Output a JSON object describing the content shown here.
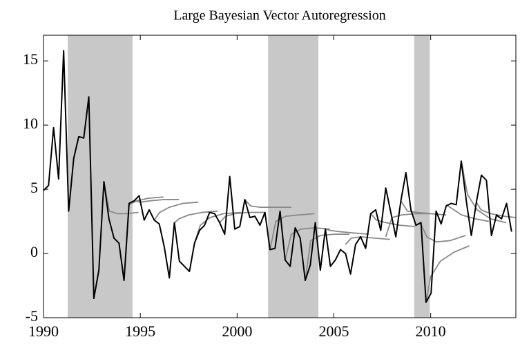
{
  "chart_data": {
    "type": "line",
    "title": "Large Bayesian Vector Autoregression",
    "xlim": [
      1990,
      2014.4
    ],
    "xticks": [
      1990,
      1995,
      2000,
      2005,
      2010
    ],
    "ylim": [
      -5,
      17
    ],
    "yticks": [
      -5,
      0,
      5,
      10,
      15
    ],
    "shaded_regions": [
      [
        1991.25,
        1994.6
      ],
      [
        2001.6,
        2004.2
      ],
      [
        2009.15,
        2009.95
      ]
    ],
    "shade_color": "#c8c8c8",
    "series": [
      {
        "color": "#000000",
        "x": [
          1990.0,
          1990.26,
          1990.52,
          1990.78,
          1991.04,
          1991.3,
          1991.56,
          1991.82,
          1992.08,
          1992.34,
          1992.6,
          1992.86,
          1993.12,
          1993.38,
          1993.64,
          1993.9,
          1994.16,
          1994.42,
          1994.68,
          1994.94,
          1995.2,
          1995.46,
          1995.72,
          1995.98,
          1996.24,
          1996.5,
          1996.76,
          1997.02,
          1997.28,
          1997.54,
          1997.8,
          1998.06,
          1998.32,
          1998.58,
          1998.84,
          1999.1,
          1999.36,
          1999.62,
          1999.88,
          2000.14,
          2000.4,
          2000.66,
          2000.92,
          2001.18,
          2001.44,
          2001.7,
          2001.96,
          2002.22,
          2002.48,
          2002.74,
          2003.0,
          2003.26,
          2003.52,
          2003.78,
          2004.04,
          2004.3,
          2004.56,
          2004.82,
          2005.08,
          2005.34,
          2005.6,
          2005.86,
          2006.12,
          2006.38,
          2006.64,
          2006.9,
          2007.16,
          2007.42,
          2007.68,
          2007.94,
          2008.2,
          2008.46,
          2008.72,
          2008.98,
          2009.24,
          2009.5,
          2009.76,
          2010.02,
          2010.28,
          2010.54,
          2010.8,
          2011.06,
          2011.32,
          2011.58,
          2011.84,
          2012.1,
          2012.36,
          2012.62,
          2012.88,
          2013.14,
          2013.4,
          2013.66,
          2013.92,
          2014.18
        ],
        "values": [
          4.9,
          5.3,
          9.8,
          5.8,
          15.8,
          3.3,
          7.4,
          9.1,
          9.0,
          12.2,
          -3.5,
          -1.3,
          5.6,
          2.7,
          1.2,
          0.8,
          -2.1,
          3.9,
          4.1,
          4.5,
          2.6,
          3.4,
          2.6,
          2.3,
          0.5,
          -1.9,
          2.4,
          -0.6,
          -1.0,
          -1.4,
          0.8,
          1.8,
          2.2,
          3.2,
          3.1,
          2.4,
          1.5,
          6.0,
          1.9,
          2.1,
          4.2,
          2.8,
          2.9,
          2.2,
          3.2,
          0.3,
          0.4,
          3.3,
          -0.5,
          -1.0,
          2.0,
          1.2,
          -2.1,
          -0.9,
          2.4,
          -1.3,
          1.9,
          -1.0,
          -0.5,
          0.3,
          0.0,
          -1.6,
          0.7,
          1.3,
          0.4,
          3.1,
          3.4,
          1.8,
          5.1,
          3.2,
          1.3,
          4.1,
          6.3,
          3.4,
          2.2,
          2.4,
          -3.8,
          -3.1,
          3.3,
          2.3,
          3.7,
          3.9,
          3.8,
          7.2,
          4.1,
          1.4,
          4.0,
          6.1,
          5.7,
          1.4,
          3.0,
          2.7,
          3.9,
          1.7
        ]
      },
      {
        "color": "#888888",
        "x": [
          1993.12,
          1993.4,
          1993.8,
          1994.3,
          1994.9
        ],
        "values": [
          5.6,
          3.3,
          3.1,
          3.1,
          3.2
        ]
      },
      {
        "color": "#888888",
        "x": [
          1994.16,
          1994.42,
          1994.8,
          1995.4,
          1996.2
        ],
        "values": [
          -2.1,
          3.8,
          4.1,
          4.3,
          4.4
        ]
      },
      {
        "color": "#888888",
        "x": [
          1994.68,
          1995.0,
          1995.5,
          1996.2,
          1997.0
        ],
        "values": [
          4.1,
          4.0,
          4.1,
          4.2,
          4.2
        ]
      },
      {
        "color": "#888888",
        "x": [
          1995.72,
          1996.0,
          1996.5,
          1997.2,
          1998.0
        ],
        "values": [
          2.6,
          3.2,
          3.6,
          3.9,
          4.0
        ]
      },
      {
        "color": "#888888",
        "x": [
          1996.76,
          1997.0,
          1997.5,
          1998.2,
          1999.0
        ],
        "values": [
          2.4,
          2.7,
          3.0,
          3.2,
          3.3
        ]
      },
      {
        "color": "#888888",
        "x": [
          1997.8,
          1998.1,
          1998.6,
          1999.3,
          2000.2
        ],
        "values": [
          0.8,
          2.2,
          2.8,
          3.1,
          3.2
        ]
      },
      {
        "color": "#888888",
        "x": [
          1999.1,
          1999.4,
          1999.9,
          2000.6,
          2001.4
        ],
        "values": [
          2.4,
          2.9,
          3.1,
          3.2,
          3.2
        ]
      },
      {
        "color": "#888888",
        "x": [
          2000.4,
          2000.7,
          2001.2,
          2001.9,
          2002.8
        ],
        "values": [
          4.2,
          3.7,
          3.6,
          3.6,
          3.6
        ]
      },
      {
        "color": "#888888",
        "x": [
          2001.7,
          2002.0,
          2002.5,
          2003.2,
          2004.0
        ],
        "values": [
          0.3,
          2.5,
          2.9,
          3.0,
          3.1
        ]
      },
      {
        "color": "#888888",
        "x": [
          2002.48,
          2002.8,
          2003.3,
          2004.0,
          2004.8
        ],
        "values": [
          -0.5,
          1.5,
          1.9,
          2.0,
          1.9
        ]
      },
      {
        "color": "#888888",
        "x": [
          2003.52,
          2003.8,
          2004.3,
          2005.0,
          2005.8
        ],
        "values": [
          -2.1,
          1.0,
          1.4,
          1.5,
          1.5
        ]
      },
      {
        "color": "#888888",
        "x": [
          2004.56,
          2004.8,
          2005.3,
          2006.0,
          2006.8
        ],
        "values": [
          1.9,
          1.8,
          1.7,
          1.6,
          1.5
        ]
      },
      {
        "color": "#888888",
        "x": [
          2005.6,
          2005.9,
          2006.4,
          2007.1,
          2007.9
        ],
        "values": [
          0.7,
          1.2,
          1.3,
          1.2,
          1.1
        ]
      },
      {
        "color": "#888888",
        "x": [
          2006.9,
          2007.2,
          2007.7,
          2008.4,
          2009.2
        ],
        "values": [
          3.1,
          2.6,
          2.4,
          2.2,
          2.1
        ]
      },
      {
        "color": "#888888",
        "x": [
          2007.68,
          2008.0,
          2008.5,
          2009.2,
          2010.0
        ],
        "values": [
          1.3,
          2.8,
          3.0,
          3.1,
          3.1
        ]
      },
      {
        "color": "#888888",
        "x": [
          2008.46,
          2008.8,
          2009.3,
          2010.0,
          2010.8
        ],
        "values": [
          4.1,
          3.3,
          3.2,
          3.1,
          3.0
        ]
      },
      {
        "color": "#888888",
        "x": [
          2009.5,
          2009.8,
          2010.3,
          2011.0,
          2011.8
        ],
        "values": [
          2.3,
          1.3,
          0.9,
          1.0,
          1.4
        ]
      },
      {
        "color": "#888888",
        "x": [
          2009.76,
          2010.0,
          2010.5,
          2011.2,
          2012.0
        ],
        "values": [
          -3.8,
          -1.8,
          -0.6,
          0.1,
          0.6
        ]
      },
      {
        "color": "#888888",
        "x": [
          2010.8,
          2011.1,
          2011.6,
          2012.3,
          2013.0
        ],
        "values": [
          3.8,
          3.5,
          3.0,
          2.7,
          2.5
        ]
      },
      {
        "color": "#888888",
        "x": [
          2011.58,
          2011.9,
          2012.4,
          2013.1,
          2013.9
        ],
        "values": [
          7.2,
          4.6,
          3.4,
          2.7,
          2.4
        ]
      },
      {
        "color": "#888888",
        "x": [
          2012.36,
          2012.6,
          2013.1,
          2013.8,
          2014.4
        ],
        "values": [
          4.0,
          3.4,
          3.1,
          2.9,
          2.8
        ]
      }
    ]
  }
}
